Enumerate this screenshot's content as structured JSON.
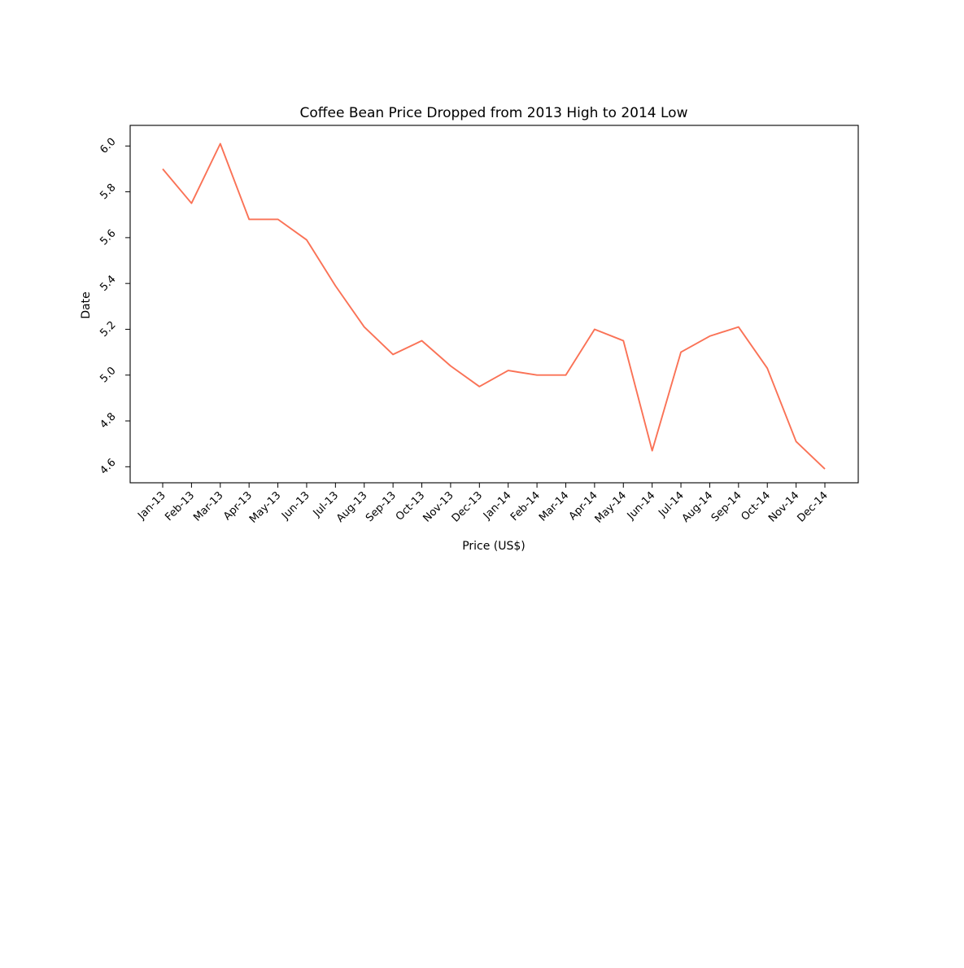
{
  "chart_data": {
    "type": "line",
    "title": "Coffee Bean Price Dropped from 2013 High to 2014 Low",
    "xlabel": "Price (US$)",
    "ylabel": "Date",
    "categories": [
      "Jan-13",
      "Feb-13",
      "Mar-13",
      "Apr-13",
      "May-13",
      "Jun-13",
      "Jul-13",
      "Aug-13",
      "Sep-13",
      "Oct-13",
      "Nov-13",
      "Dec-13",
      "Jan-14",
      "Feb-14",
      "Mar-14",
      "Apr-14",
      "May-14",
      "Jun-14",
      "Jul-14",
      "Aug-14",
      "Sep-14",
      "Oct-14",
      "Nov-14",
      "Dec-14"
    ],
    "series": [
      {
        "values": [
          5.9,
          5.75,
          6.01,
          5.68,
          5.68,
          5.59,
          5.39,
          5.21,
          5.09,
          5.15,
          5.04,
          4.95,
          5.02,
          5.0,
          5.0,
          5.2,
          5.15,
          4.67,
          5.1,
          5.17,
          5.21,
          5.03,
          4.71,
          4.59
        ],
        "color": "#fa7256"
      }
    ],
    "yticks": [
      "4.6",
      "4.8",
      "5.0",
      "5.2",
      "5.4",
      "5.6",
      "5.8",
      "6.0"
    ],
    "ylim": [
      4.53,
      6.09
    ],
    "grid": false,
    "legend": false
  }
}
